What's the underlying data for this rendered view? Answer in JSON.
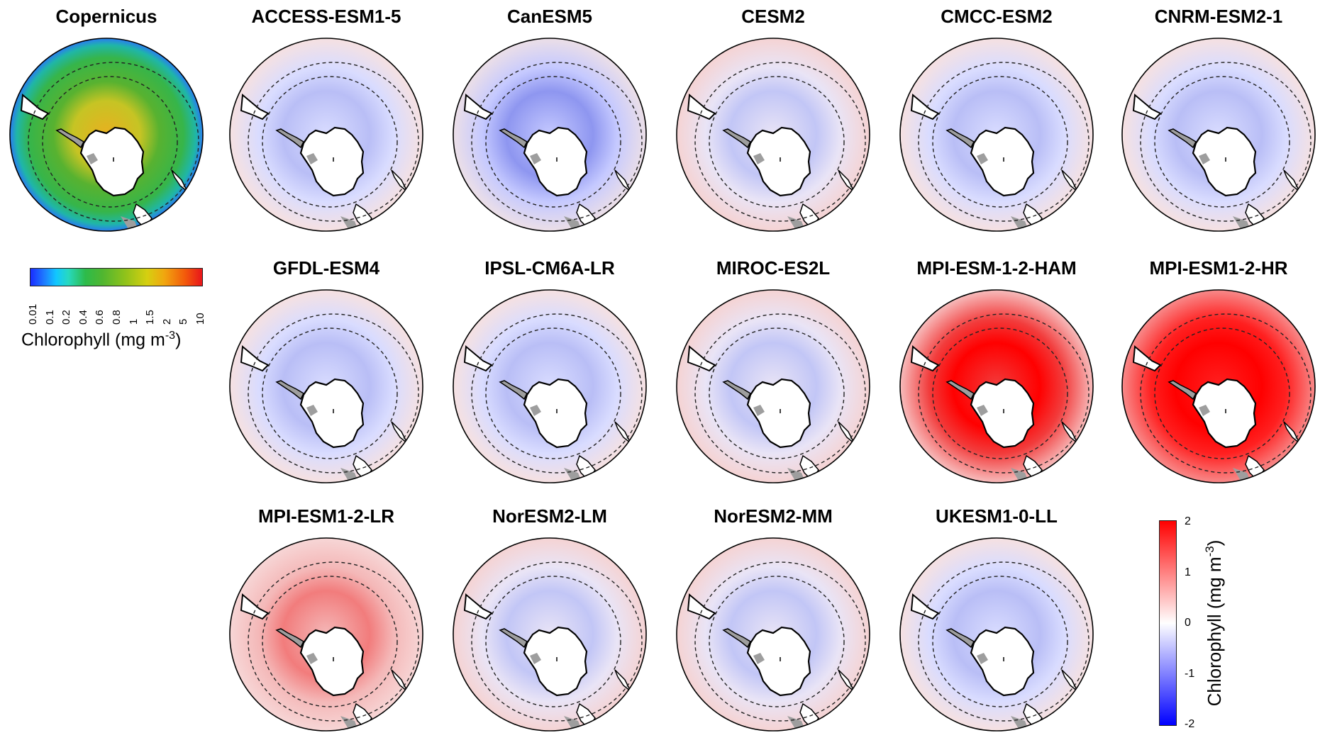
{
  "panels": [
    {
      "title": "Copernicus",
      "style": "obs"
    },
    {
      "title": "ACCESS-ESM1-5",
      "style": "neg"
    },
    {
      "title": "CanESM5",
      "style": "negstrong"
    },
    {
      "title": "CESM2",
      "style": "mixed"
    },
    {
      "title": "CMCC-ESM2",
      "style": "neg"
    },
    {
      "title": "CNRM-ESM2-1",
      "style": "neg"
    },
    {
      "title": "GFDL-ESM4",
      "style": "neg"
    },
    {
      "title": "IPSL-CM6A-LR",
      "style": "neg"
    },
    {
      "title": "MIROC-ES2L",
      "style": "mixed"
    },
    {
      "title": "MPI-ESM-1-2-HAM",
      "style": "posstrong"
    },
    {
      "title": "MPI-ESM1-2-HR",
      "style": "posmax"
    },
    {
      "title": "MPI-ESM1-2-LR",
      "style": "pos"
    },
    {
      "title": "NorESM2-LM",
      "style": "mixed"
    },
    {
      "title": "NorESM2-MM",
      "style": "mixed"
    },
    {
      "title": "UKESM1-0-LL",
      "style": "neg"
    }
  ],
  "colorbar_obs": {
    "ticks": [
      "0.01",
      "0.1",
      "0.2",
      "0.4",
      "0.6",
      "0.8",
      "1",
      "1.5",
      "2",
      "5",
      "10"
    ],
    "label_main": "Chlorophyll (mg m",
    "label_exp": "-3",
    "label_end": ")",
    "colors": [
      "#1a2cff",
      "#11c7ff",
      "#2dbb4a",
      "#d6cf10",
      "#e8151b"
    ]
  },
  "colorbar_diff": {
    "ticks": [
      {
        "label": "2",
        "value": 2
      },
      {
        "label": "1",
        "value": 1
      },
      {
        "label": "0",
        "value": 0
      },
      {
        "label": "-1",
        "value": -1
      },
      {
        "label": "-2",
        "value": -2
      }
    ],
    "range": [
      -2,
      2
    ],
    "label_main": "Chlorophyll (mg m",
    "label_exp": "-3",
    "label_end": ")",
    "colors": [
      "#ff0000",
      "#ffffff",
      "#0000ff"
    ]
  }
}
